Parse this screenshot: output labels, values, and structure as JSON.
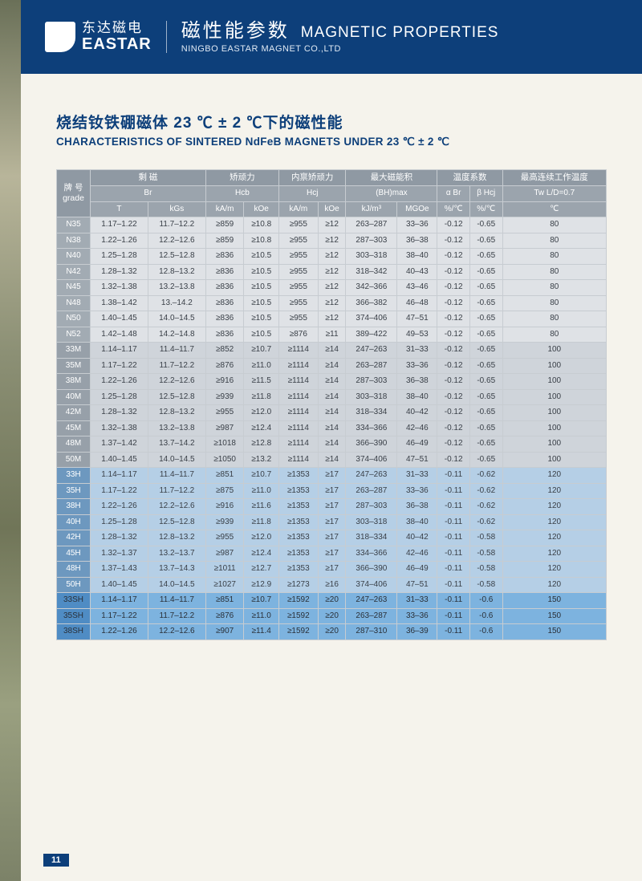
{
  "header": {
    "logo_cn": "东达磁电",
    "logo_en": "EASTAR",
    "title_cn": "磁性能参数",
    "title_en": "MAGNETIC PROPERTIES",
    "subtitle": "NINGBO EASTAR MAGNET CO.,LTD"
  },
  "doc": {
    "title_cn": "烧结钕铁硼磁体 23 ℃ ± 2 ℃下的磁性能",
    "title_en": "CHARACTERISTICS OF  SINTERED  NdFeB MAGNETS UNDER 23 ℃ ± 2 ℃",
    "page_number": "11"
  },
  "table": {
    "groups": [
      {
        "cn": "剩 磁",
        "sym": "Br",
        "units": [
          "T",
          "kGs"
        ]
      },
      {
        "cn": "矫顽力",
        "sym": "Hcb",
        "units": [
          "kA/m",
          "kOe"
        ]
      },
      {
        "cn": "内禀矫顽力",
        "sym": "Hcj",
        "units": [
          "kA/m",
          "kOe"
        ]
      },
      {
        "cn": "最大磁能积",
        "sym": "(BH)max",
        "units": [
          "kJ/m³",
          "MGOe"
        ]
      },
      {
        "cn": "温度系数",
        "sym": [
          "α Br",
          "β Hcj"
        ],
        "units": [
          "%/℃",
          "%/℃"
        ]
      },
      {
        "cn": "最高连续工作温度",
        "sym": "Tw L/D=0.7",
        "units": [
          "℃"
        ]
      }
    ],
    "grade_label_cn": "牌 号",
    "grade_label_en": "grade",
    "rows": [
      {
        "g": "N35",
        "sect": "n",
        "c": [
          "1.17–1.22",
          "11.7–12.2",
          "≥859",
          "≥10.8",
          "≥955",
          "≥12",
          "263–287",
          "33–36",
          "-0.12",
          "-0.65",
          "80"
        ]
      },
      {
        "g": "N38",
        "sect": "n",
        "c": [
          "1.22–1.26",
          "12.2–12.6",
          "≥859",
          "≥10.8",
          "≥955",
          "≥12",
          "287–303",
          "36–38",
          "-0.12",
          "-0.65",
          "80"
        ]
      },
      {
        "g": "N40",
        "sect": "n",
        "c": [
          "1.25–1.28",
          "12.5–12.8",
          "≥836",
          "≥10.5",
          "≥955",
          "≥12",
          "303–318",
          "38–40",
          "-0.12",
          "-0.65",
          "80"
        ]
      },
      {
        "g": "N42",
        "sect": "n",
        "c": [
          "1.28–1.32",
          "12.8–13.2",
          "≥836",
          "≥10.5",
          "≥955",
          "≥12",
          "318–342",
          "40–43",
          "-0.12",
          "-0.65",
          "80"
        ]
      },
      {
        "g": "N45",
        "sect": "n",
        "c": [
          "1.32–1.38",
          "13.2–13.8",
          "≥836",
          "≥10.5",
          "≥955",
          "≥12",
          "342–366",
          "43–46",
          "-0.12",
          "-0.65",
          "80"
        ]
      },
      {
        "g": "N48",
        "sect": "n",
        "c": [
          "1.38–1.42",
          "13.–14.2",
          "≥836",
          "≥10.5",
          "≥955",
          "≥12",
          "366–382",
          "46–48",
          "-0.12",
          "-0.65",
          "80"
        ]
      },
      {
        "g": "N50",
        "sect": "n",
        "c": [
          "1.40–1.45",
          "14.0–14.5",
          "≥836",
          "≥10.5",
          "≥955",
          "≥12",
          "374–406",
          "47–51",
          "-0.12",
          "-0.65",
          "80"
        ]
      },
      {
        "g": "N52",
        "sect": "n",
        "c": [
          "1.42–1.48",
          "14.2–14.8",
          "≥836",
          "≥10.5",
          "≥876",
          "≥11",
          "389–422",
          "49–53",
          "-0.12",
          "-0.65",
          "80"
        ]
      },
      {
        "g": "33M",
        "sect": "m",
        "c": [
          "1.14–1.17",
          "11.4–11.7",
          "≥852",
          "≥10.7",
          "≥1114",
          "≥14",
          "247–263",
          "31–33",
          "-0.12",
          "-0.65",
          "100"
        ]
      },
      {
        "g": "35M",
        "sect": "m",
        "c": [
          "1.17–1.22",
          "11.7–12.2",
          "≥876",
          "≥11.0",
          "≥1114",
          "≥14",
          "263–287",
          "33–36",
          "-0.12",
          "-0.65",
          "100"
        ]
      },
      {
        "g": "38M",
        "sect": "m",
        "c": [
          "1.22–1.26",
          "12.2–12.6",
          "≥916",
          "≥11.5",
          "≥1114",
          "≥14",
          "287–303",
          "36–38",
          "-0.12",
          "-0.65",
          "100"
        ]
      },
      {
        "g": "40M",
        "sect": "m",
        "c": [
          "1.25–1.28",
          "12.5–12.8",
          "≥939",
          "≥11.8",
          "≥1114",
          "≥14",
          "303–318",
          "38–40",
          "-0.12",
          "-0.65",
          "100"
        ]
      },
      {
        "g": "42M",
        "sect": "m",
        "c": [
          "1.28–1.32",
          "12.8–13.2",
          "≥955",
          "≥12.0",
          "≥1114",
          "≥14",
          "318–334",
          "40–42",
          "-0.12",
          "-0.65",
          "100"
        ]
      },
      {
        "g": "45M",
        "sect": "m",
        "c": [
          "1.32–1.38",
          "13.2–13.8",
          "≥987",
          "≥12.4",
          "≥1114",
          "≥14",
          "334–366",
          "42–46",
          "-0.12",
          "-0.65",
          "100"
        ]
      },
      {
        "g": "48M",
        "sect": "m",
        "c": [
          "1.37–1.42",
          "13.7–14.2",
          "≥1018",
          "≥12.8",
          "≥1114",
          "≥14",
          "366–390",
          "46–49",
          "-0.12",
          "-0.65",
          "100"
        ]
      },
      {
        "g": "50M",
        "sect": "m",
        "c": [
          "1.40–1.45",
          "14.0–14.5",
          "≥1050",
          "≥13.2",
          "≥1114",
          "≥14",
          "374–406",
          "47–51",
          "-0.12",
          "-0.65",
          "100"
        ]
      },
      {
        "g": "33H",
        "sect": "h",
        "c": [
          "1.14–1.17",
          "11.4–11.7",
          "≥851",
          "≥10.7",
          "≥1353",
          "≥17",
          "247–263",
          "31–33",
          "-0.11",
          "-0.62",
          "120"
        ]
      },
      {
        "g": "35H",
        "sect": "h",
        "c": [
          "1.17–1.22",
          "11.7–12.2",
          "≥875",
          "≥11.0",
          "≥1353",
          "≥17",
          "263–287",
          "33–36",
          "-0.11",
          "-0.62",
          "120"
        ]
      },
      {
        "g": "38H",
        "sect": "h",
        "c": [
          "1.22–1.26",
          "12.2–12.6",
          "≥916",
          "≥11.6",
          "≥1353",
          "≥17",
          "287–303",
          "36–38",
          "-0.11",
          "-0.62",
          "120"
        ]
      },
      {
        "g": "40H",
        "sect": "h",
        "c": [
          "1.25–1.28",
          "12.5–12.8",
          "≥939",
          "≥11.8",
          "≥1353",
          "≥17",
          "303–318",
          "38–40",
          "-0.11",
          "-0.62",
          "120"
        ]
      },
      {
        "g": "42H",
        "sect": "h",
        "c": [
          "1.28–1.32",
          "12.8–13.2",
          "≥955",
          "≥12.0",
          "≥1353",
          "≥17",
          "318–334",
          "40–42",
          "-0.11",
          "-0.58",
          "120"
        ]
      },
      {
        "g": "45H",
        "sect": "h",
        "c": [
          "1.32–1.37",
          "13.2–13.7",
          "≥987",
          "≥12.4",
          "≥1353",
          "≥17",
          "334–366",
          "42–46",
          "-0.11",
          "-0.58",
          "120"
        ]
      },
      {
        "g": "48H",
        "sect": "h",
        "c": [
          "1.37–1.43",
          "13.7–14.3",
          "≥1011",
          "≥12.7",
          "≥1353",
          "≥17",
          "366–390",
          "46–49",
          "-0.11",
          "-0.58",
          "120"
        ]
      },
      {
        "g": "50H",
        "sect": "h",
        "c": [
          "1.40–1.45",
          "14.0–14.5",
          "≥1027",
          "≥12.9",
          "≥1273",
          "≥16",
          "374–406",
          "47–51",
          "-0.11",
          "-0.58",
          "120"
        ]
      },
      {
        "g": "33SH",
        "sect": "sh",
        "c": [
          "1.14–1.17",
          "11.4–11.7",
          "≥851",
          "≥10.7",
          "≥1592",
          "≥20",
          "247–263",
          "31–33",
          "-0.11",
          "-0.6",
          "150"
        ]
      },
      {
        "g": "35SH",
        "sect": "sh",
        "c": [
          "1.17–1.22",
          "11.7–12.2",
          "≥876",
          "≥11.0",
          "≥1592",
          "≥20",
          "263–287",
          "33–36",
          "-0.11",
          "-0.6",
          "150"
        ]
      },
      {
        "g": "38SH",
        "sect": "sh",
        "c": [
          "1.22–1.26",
          "12.2–12.6",
          "≥907",
          "≥11.4",
          "≥1592",
          "≥20",
          "287–310",
          "36–39",
          "-0.11",
          "-0.6",
          "150"
        ]
      }
    ]
  }
}
